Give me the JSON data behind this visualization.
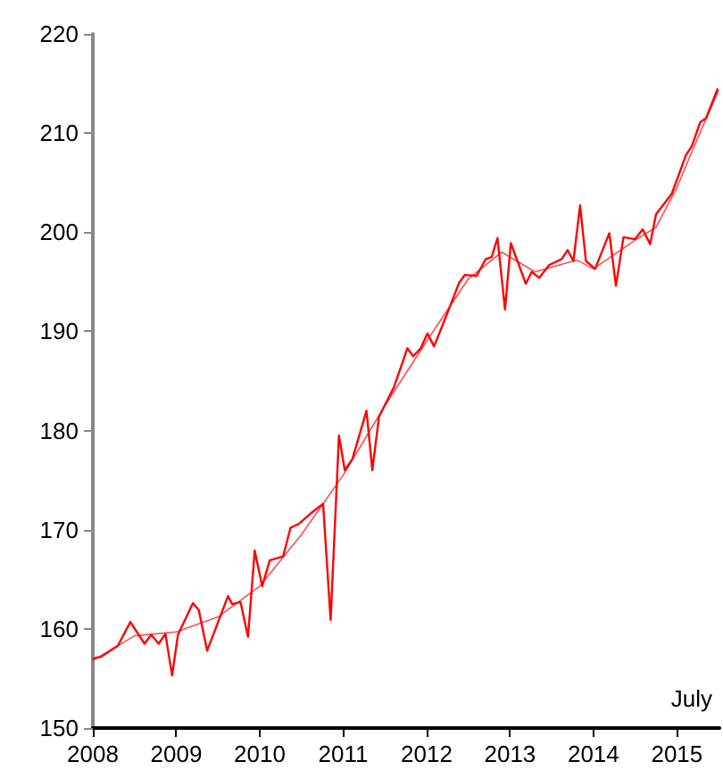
{
  "chart_data": {
    "type": "line",
    "xlim": [
      2008,
      2015.51
    ],
    "xticks": [
      2008,
      2009,
      2010,
      2011,
      2012,
      2013,
      2014,
      2015
    ],
    "ylim": [
      150,
      220
    ],
    "yticks": [
      150,
      160,
      170,
      180,
      190,
      200,
      210,
      220
    ],
    "grid": false,
    "marker": "none",
    "line_style": "solid",
    "annotations": [
      "July"
    ],
    "series": [
      {
        "color": "#ff0000",
        "x": [
          2008.0,
          2008.1,
          2008.3,
          2008.45,
          2008.62,
          2008.7,
          2008.79,
          2008.87,
          2008.95,
          2009.02,
          2009.2,
          2009.27,
          2009.37,
          2009.62,
          2009.67,
          2009.77,
          2009.86,
          2009.94,
          2010.03,
          2010.12,
          2010.28,
          2010.37,
          2010.47,
          2010.62,
          2010.76,
          2010.85,
          2010.95,
          2011.02,
          2011.11,
          2011.28,
          2011.35,
          2011.43,
          2011.61,
          2011.77,
          2011.84,
          2011.93,
          2012.01,
          2012.09,
          2012.21,
          2012.39,
          2012.46,
          2012.6,
          2012.71,
          2012.78,
          2012.85,
          2012.94,
          2013.01,
          2013.19,
          2013.26,
          2013.35,
          2013.47,
          2013.62,
          2013.69,
          2013.76,
          2013.84,
          2013.91,
          2014.02,
          2014.19,
          2014.27,
          2014.36,
          2014.5,
          2014.59,
          2014.68,
          2014.75,
          2014.94,
          2015.11,
          2015.18,
          2015.28,
          2015.35,
          2015.49
        ],
        "values": [
          157.0,
          157.2,
          158.3,
          160.7,
          158.5,
          159.4,
          158.5,
          159.5,
          155.3,
          159.4,
          162.6,
          161.9,
          157.8,
          163.3,
          162.5,
          162.7,
          159.2,
          167.9,
          164.3,
          166.9,
          167.3,
          170.2,
          170.6,
          171.7,
          172.6,
          160.9,
          179.5,
          176.0,
          177.1,
          182.0,
          176.0,
          181.4,
          184.4,
          188.3,
          187.5,
          188.3,
          189.8,
          188.5,
          191.0,
          194.9,
          195.7,
          195.6,
          197.3,
          197.5,
          199.4,
          192.2,
          198.9,
          194.8,
          196.0,
          195.4,
          196.7,
          197.3,
          198.2,
          197.1,
          202.7,
          197.1,
          196.3,
          199.9,
          194.6,
          199.5,
          199.3,
          200.3,
          198.8,
          201.8,
          203.9,
          207.8,
          208.7,
          211.1,
          211.5,
          214.5
        ]
      },
      {
        "color": "#ff0000",
        "x": [
          2008.0,
          2008.5,
          2009.0,
          2009.5,
          2010.0,
          2010.5,
          2011.0,
          2011.5,
          2012.0,
          2012.5,
          2012.9,
          2013.3,
          2013.8,
          2014.0,
          2014.5,
          2014.75,
          2015.0,
          2015.25,
          2015.5
        ],
        "values": [
          156.8,
          159.3,
          159.7,
          161.2,
          164.3,
          169.5,
          175.5,
          182.5,
          189.0,
          195.3,
          198.0,
          196.0,
          197.2,
          196.3,
          199.2,
          200.5,
          204.5,
          209.5,
          214.3
        ]
      }
    ]
  }
}
